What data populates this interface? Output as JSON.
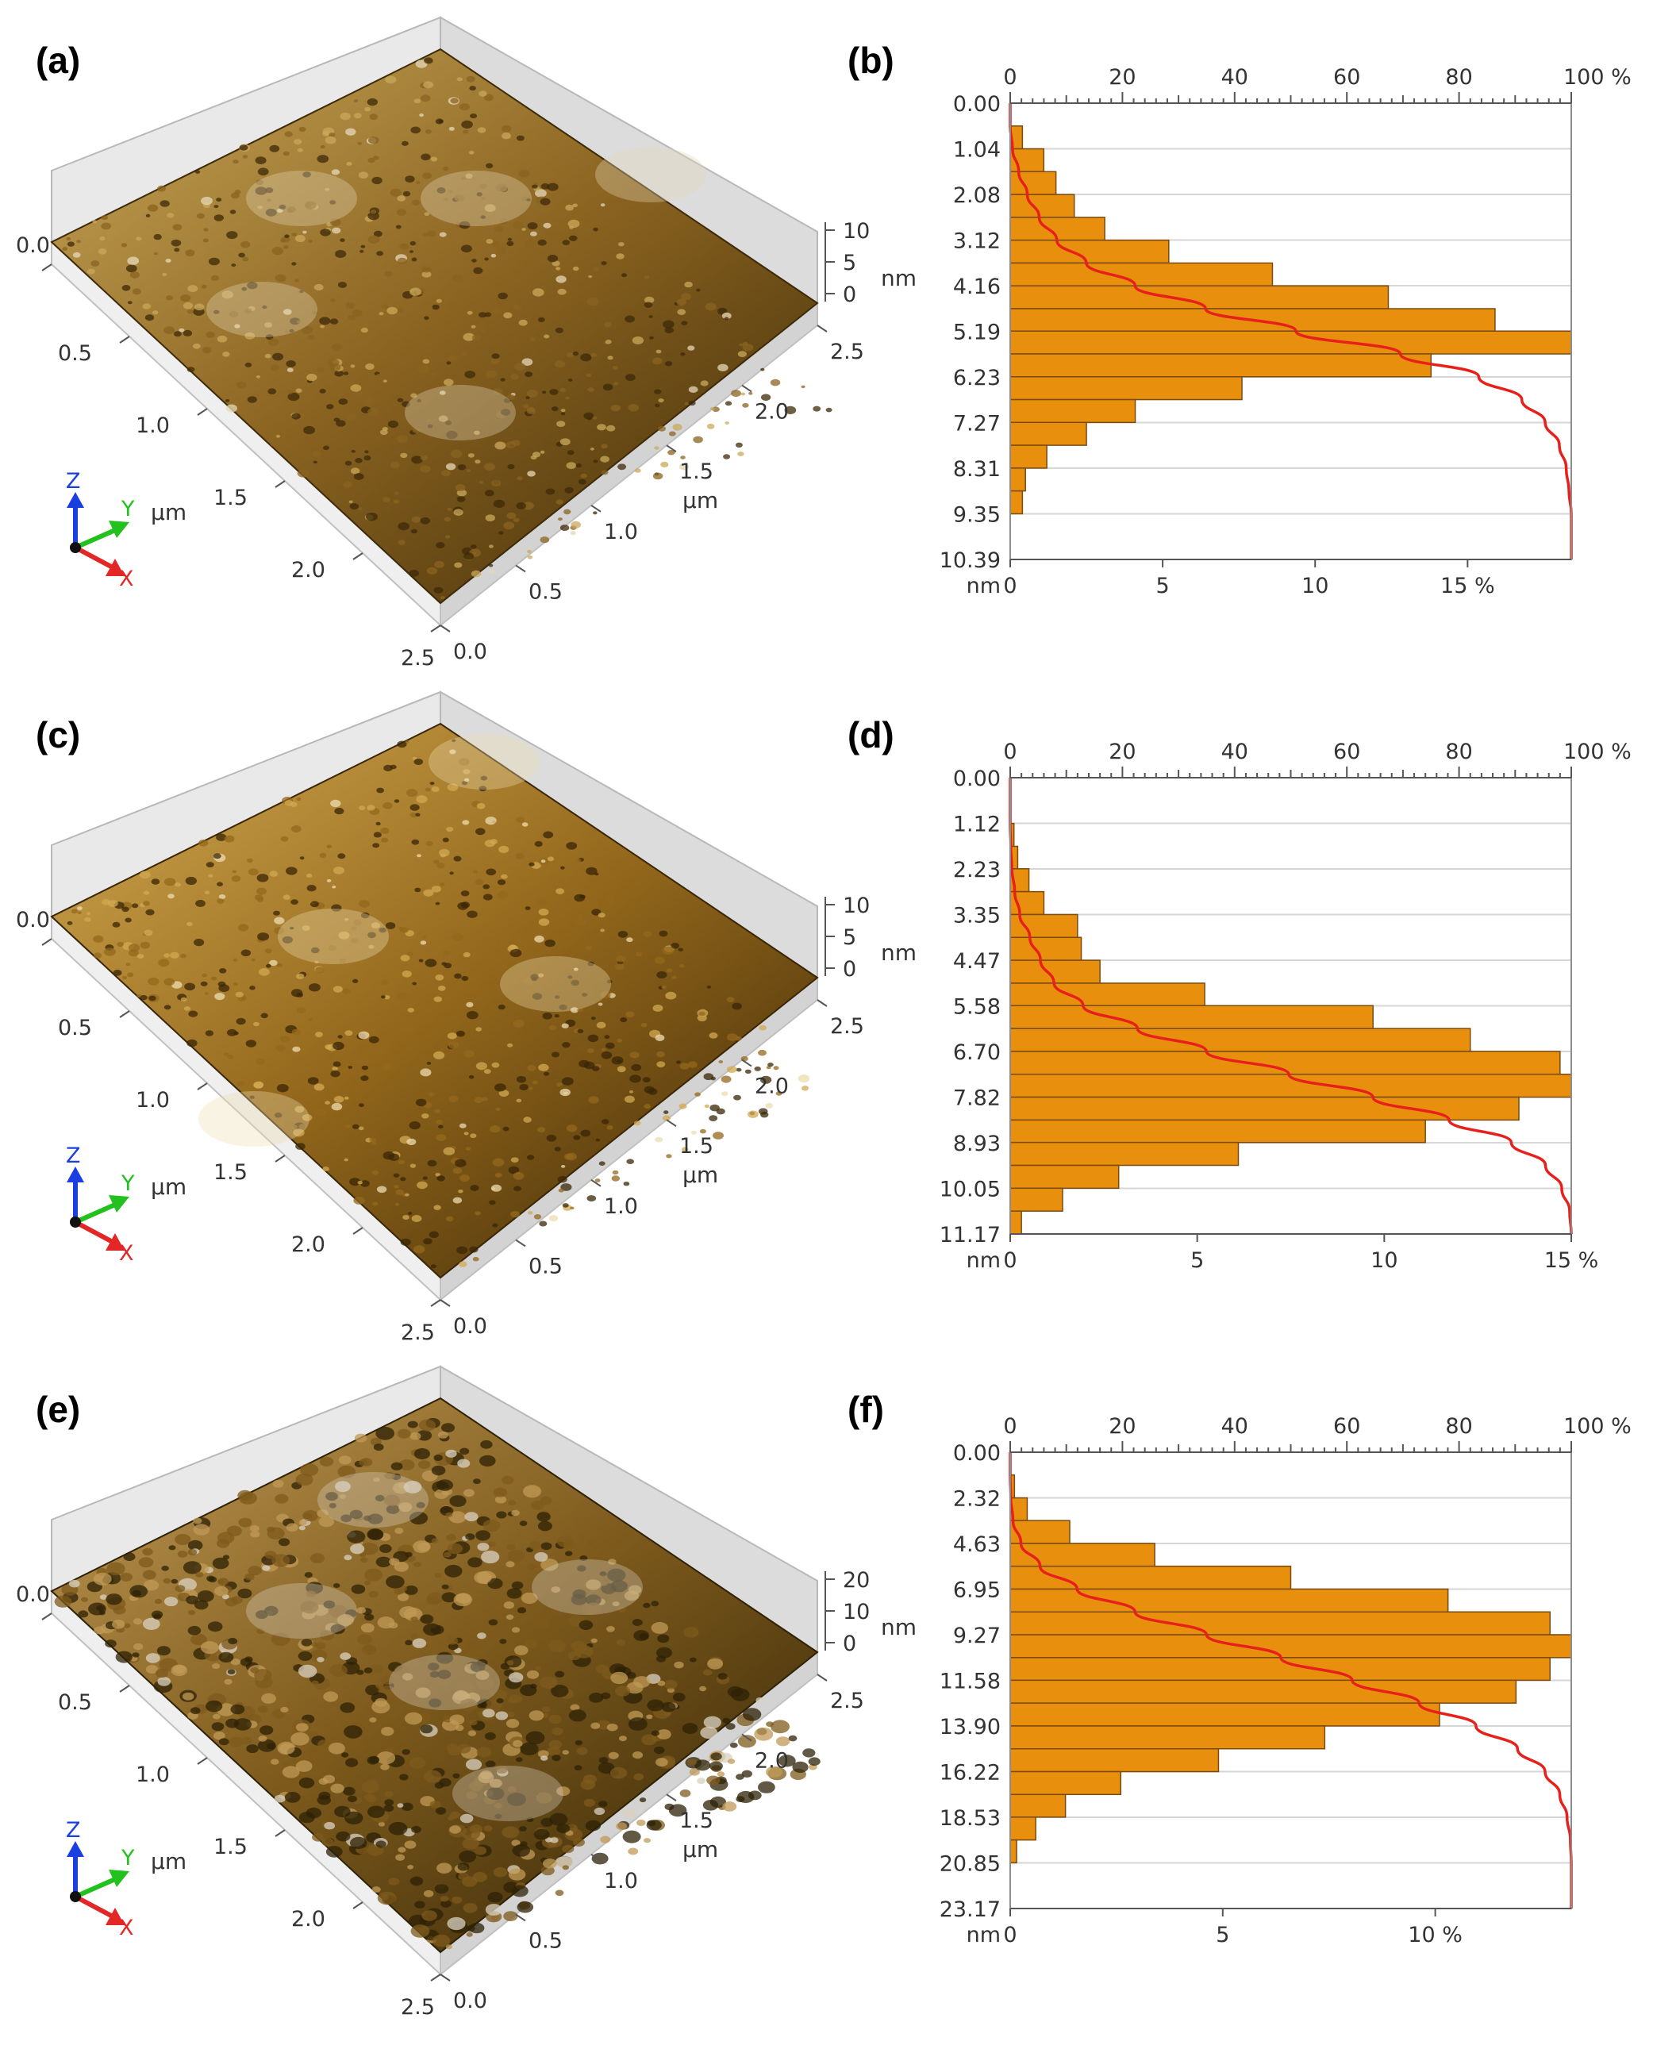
{
  "panel_labels": [
    "(a)",
    "(b)",
    "(c)",
    "(d)",
    "(e)",
    "(f)"
  ],
  "surface_plots": [
    {
      "label": "(a)",
      "z_ticks": [
        "10",
        "5",
        "0"
      ],
      "z_unit": "nm",
      "x_ticks": [
        "0.0",
        "0.5",
        "1.0",
        "1.5",
        "2.0",
        "2.5"
      ],
      "y_ticks": [
        "0.0",
        "0.5",
        "1.0",
        "1.5",
        "2.0",
        "2.5"
      ],
      "left_unit": "µm",
      "right_unit": "µm",
      "axis_letters": [
        "Z",
        "Y",
        "X"
      ],
      "colors": {
        "dark": "#3d2a08",
        "mid": "#8a6320",
        "light": "#c9a85a",
        "highlight": "#e6d8b8"
      }
    },
    {
      "label": "(c)",
      "z_ticks": [
        "10",
        "5",
        "0"
      ],
      "z_unit": "nm",
      "x_ticks": [
        "0.0",
        "0.5",
        "1.0",
        "1.5",
        "2.0",
        "2.5"
      ],
      "y_ticks": [
        "0.0",
        "0.5",
        "1.0",
        "1.5",
        "2.0",
        "2.5"
      ],
      "left_unit": "µm",
      "right_unit": "µm",
      "axis_letters": [
        "Z",
        "Y",
        "X"
      ],
      "colors": {
        "dark": "#3a2606",
        "mid": "#94681c",
        "light": "#d2aa52",
        "highlight": "#eddcb0"
      }
    },
    {
      "label": "(e)",
      "z_ticks": [
        "20",
        "10",
        "0"
      ],
      "z_unit": "nm",
      "x_ticks": [
        "0.0",
        "0.5",
        "1.0",
        "1.5",
        "2.0",
        "2.5"
      ],
      "y_ticks": [
        "0.0",
        "0.5",
        "1.0",
        "1.5",
        "2.0",
        "2.5"
      ],
      "left_unit": "µm",
      "right_unit": "µm",
      "axis_letters": [
        "Z",
        "Y",
        "X"
      ],
      "colors": {
        "dark": "#2e2106",
        "mid": "#7d5a1c",
        "light": "#c09a55",
        "highlight": "#d9d2c2"
      }
    }
  ],
  "chart_data": [
    {
      "label": "(b)",
      "type": "bar",
      "orientation": "horizontal",
      "y_unit": "nm",
      "y_tick_labels": [
        "0.00",
        "1.04",
        "2.08",
        "3.12",
        "4.16",
        "5.19",
        "6.23",
        "7.27",
        "8.31",
        "9.35",
        "10.39"
      ],
      "bin_edges_nm": [
        0.0,
        0.52,
        1.04,
        1.56,
        2.08,
        2.6,
        3.12,
        3.64,
        4.16,
        4.68,
        5.19,
        5.71,
        6.23,
        6.75,
        7.27,
        7.79,
        8.31,
        8.83,
        9.35,
        9.87,
        10.39
      ],
      "values_percent": [
        0.0,
        0.4,
        1.1,
        1.5,
        2.1,
        3.1,
        5.2,
        8.6,
        12.4,
        15.9,
        18.4,
        13.8,
        7.6,
        4.1,
        2.5,
        1.2,
        0.5,
        0.4,
        0.0,
        0.0
      ],
      "bottom_axis": {
        "ticks": [
          "0",
          "5",
          "10",
          "15 %"
        ],
        "values": [
          0,
          5,
          10,
          15
        ],
        "max": 18.4
      },
      "top_axis": {
        "ticks": [
          "0",
          "20",
          "40",
          "60",
          "80",
          "100 %"
        ],
        "values": [
          0,
          20,
          40,
          60,
          80,
          100
        ]
      },
      "cumulative_curve": "cumulative percent (red)"
    },
    {
      "label": "(d)",
      "type": "bar",
      "orientation": "horizontal",
      "y_unit": "nm",
      "y_tick_labels": [
        "0.00",
        "1.12",
        "2.23",
        "3.35",
        "4.47",
        "5.58",
        "6.70",
        "7.82",
        "8.93",
        "10.05",
        "11.17"
      ],
      "bin_edges_nm": [
        0.0,
        0.56,
        1.12,
        1.68,
        2.23,
        2.79,
        3.35,
        3.91,
        4.47,
        5.03,
        5.58,
        6.14,
        6.7,
        7.26,
        7.82,
        8.38,
        8.93,
        9.49,
        10.05,
        10.61,
        11.17
      ],
      "values_percent": [
        0.0,
        0.0,
        0.1,
        0.2,
        0.5,
        0.9,
        1.8,
        1.9,
        2.4,
        5.2,
        9.7,
        12.3,
        14.7,
        15.0,
        13.6,
        11.1,
        6.1,
        2.9,
        1.4,
        0.3
      ],
      "bottom_axis": {
        "ticks": [
          "0",
          "5",
          "10",
          "15 %"
        ],
        "values": [
          0,
          5,
          10,
          15
        ],
        "max": 15.0
      },
      "top_axis": {
        "ticks": [
          "0",
          "20",
          "40",
          "60",
          "80",
          "100 %"
        ],
        "values": [
          0,
          20,
          40,
          60,
          80,
          100
        ]
      },
      "cumulative_curve": "cumulative percent (red)"
    },
    {
      "label": "(f)",
      "type": "bar",
      "orientation": "horizontal",
      "y_unit": "nm",
      "y_tick_labels": [
        "0.00",
        "2.32",
        "4.63",
        "6.95",
        "9.27",
        "11.58",
        "13.90",
        "16.22",
        "18.53",
        "20.85",
        "23.17"
      ],
      "bin_edges_nm": [
        0.0,
        1.16,
        2.32,
        3.47,
        4.63,
        5.79,
        6.95,
        8.11,
        9.27,
        10.43,
        11.58,
        12.74,
        13.9,
        15.06,
        16.22,
        17.38,
        18.53,
        19.69,
        20.85,
        22.01,
        23.17
      ],
      "values_percent": [
        0.0,
        0.1,
        0.4,
        1.4,
        3.4,
        6.6,
        10.3,
        12.7,
        13.2,
        12.7,
        11.9,
        10.1,
        7.4,
        4.9,
        2.6,
        1.3,
        0.6,
        0.15,
        0.0,
        0.0
      ],
      "bottom_axis": {
        "ticks": [
          "0",
          "5",
          "10 %"
        ],
        "values": [
          0,
          5,
          10
        ],
        "max": 13.2
      },
      "top_axis": {
        "ticks": [
          "0",
          "20",
          "40",
          "60",
          "80",
          "100 %"
        ],
        "values": [
          0,
          20,
          40,
          60,
          80,
          100
        ]
      },
      "cumulative_curve": "cumulative percent (red)"
    }
  ]
}
